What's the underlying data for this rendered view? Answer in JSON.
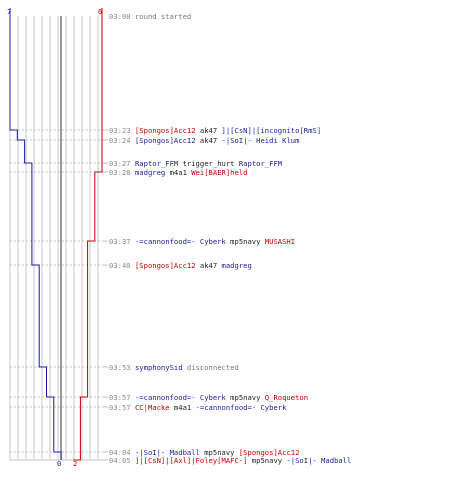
{
  "colors": {
    "blue_team": "#1a1aa8",
    "red_team": "#c00000",
    "grid": "#c8c8c8",
    "dashed_line": "#c0c0c0",
    "center_line": "#555555",
    "time_text": "#8a8a8a"
  },
  "scoreboard": {
    "blue_start": "7",
    "red_start": "6",
    "blue_end": "0",
    "red_end": "2"
  },
  "chart_data": {
    "type": "line",
    "x_label": "",
    "y_label": "",
    "series": [
      {
        "team": "blue",
        "points": [
          {
            "t": "03:08",
            "alive": 7
          },
          {
            "t": "03:23",
            "alive": 6
          },
          {
            "t": "03:24",
            "alive": 5
          },
          {
            "t": "03:27",
            "alive": 4
          },
          {
            "t": "03:37",
            "alive": 4
          },
          {
            "t": "03:40",
            "alive": 3
          },
          {
            "t": "03:53",
            "alive": 2
          },
          {
            "t": "03:57",
            "alive": 1
          },
          {
            "t": "04:04",
            "alive": 0
          }
        ]
      },
      {
        "team": "red",
        "points": [
          {
            "t": "03:08",
            "alive": 6
          },
          {
            "t": "03:28",
            "alive": 5
          },
          {
            "t": "03:37",
            "alive": 4
          },
          {
            "t": "03:57",
            "alive": 3
          },
          {
            "t": "04:05",
            "alive": 2
          }
        ]
      }
    ]
  },
  "events": [
    {
      "time": "03:08",
      "msg": "round started",
      "parts": []
    },
    {
      "time": "03:23",
      "parts": [
        {
          "text": "[Spongos]Acc12",
          "team": "red"
        },
        {
          "text": " ak47 ",
          "team": "plain"
        },
        {
          "text": "]|[CsN]|[incognito[RmS]",
          "team": "blue"
        }
      ]
    },
    {
      "time": "03:24",
      "parts": [
        {
          "text": "[Spongos]Acc12",
          "team": "blue"
        },
        {
          "text": " ak47 ",
          "team": "plain"
        },
        {
          "text": "-|SoI|- Heidi Klum",
          "team": "blue"
        }
      ]
    },
    {
      "time": "03:27",
      "parts": [
        {
          "text": "Raptor_FFM",
          "team": "blue"
        },
        {
          "text": " trigger_hurt ",
          "team": "plain"
        },
        {
          "text": "Raptor_FFM",
          "team": "blue"
        }
      ]
    },
    {
      "time": "03:28",
      "parts": [
        {
          "text": "madgreg",
          "team": "blue"
        },
        {
          "text": " m4a1 ",
          "team": "plain"
        },
        {
          "text": "Wei[BAER]held",
          "team": "red"
        }
      ]
    },
    {
      "time": "03:37",
      "parts": [
        {
          "text": "-=cannonfood=- Cyberk",
          "team": "blue"
        },
        {
          "text": "  mp5navy ",
          "team": "plain"
        },
        {
          "text": "MUSASHI",
          "team": "red"
        }
      ]
    },
    {
      "time": "03:40",
      "parts": [
        {
          "text": "[Spongos]Acc12",
          "team": "red"
        },
        {
          "text": " ak47 ",
          "team": "plain"
        },
        {
          "text": "madgreg",
          "team": "blue"
        }
      ]
    },
    {
      "time": "03:53",
      "parts": [
        {
          "text": "symphonySid",
          "team": "blue"
        },
        {
          "text": " disconnected",
          "team": "gray"
        }
      ]
    },
    {
      "time": "03:57",
      "parts": [
        {
          "text": "-=cannonfood=- Cyberk",
          "team": "blue"
        },
        {
          "text": "  mp5navy ",
          "team": "plain"
        },
        {
          "text": "Q_Roqueton",
          "team": "red"
        }
      ]
    },
    {
      "time": "03:57",
      "parts": [
        {
          "text": "CC|Macke",
          "team": "red"
        },
        {
          "text": " m4a1 ",
          "team": "plain"
        },
        {
          "text": "-=cannonfood=- Cyberk",
          "team": "blue"
        }
      ]
    },
    {
      "time": "04:04",
      "parts": [
        {
          "text": "-|SoI|- Madball",
          "team": "blue"
        },
        {
          "text": " mp5navy ",
          "team": "plain"
        },
        {
          "text": "[Spongos]Acc12",
          "team": "red"
        }
      ]
    },
    {
      "time": "04:05",
      "parts": [
        {
          "text": "]|[CsN]|[Axl]|Foley[MAFC-]",
          "team": "red"
        },
        {
          "text": " mp5navy ",
          "team": "plain"
        },
        {
          "text": "-|SoI|- Madball",
          "team": "blue"
        }
      ]
    }
  ]
}
